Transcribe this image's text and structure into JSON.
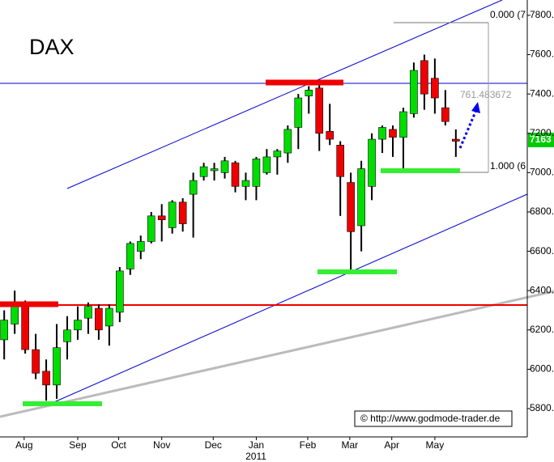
{
  "chart_data": {
    "type": "candlestick",
    "title": "DAX",
    "x": [
      0,
      1,
      2,
      3,
      4,
      5,
      6,
      7,
      8,
      9,
      10,
      11,
      12,
      13,
      14,
      15,
      16,
      17,
      18,
      19,
      20,
      21,
      22,
      23,
      24,
      25,
      26,
      27,
      28,
      29,
      30,
      31,
      32,
      33,
      34,
      35,
      36,
      37,
      38,
      39,
      40,
      41,
      42,
      43
    ],
    "open": [
      6150,
      6230,
      6330,
      6100,
      5990,
      5920,
      6140,
      6200,
      6260,
      6310,
      6220,
      6290,
      6510,
      6600,
      6650,
      6780,
      6720,
      6850,
      6890,
      6980,
      7010,
      7000,
      7050,
      6930,
      6930,
      7000,
      7080,
      7100,
      7230,
      7390,
      7430,
      7210,
      7140,
      6950,
      6730,
      6930,
      7170,
      7220,
      7180,
      7300,
      7570,
      7480,
      7330,
      7170
    ],
    "high": [
      6300,
      6400,
      6350,
      6180,
      6050,
      6230,
      6270,
      6320,
      6340,
      6330,
      6330,
      6520,
      6650,
      6680,
      6800,
      6840,
      6860,
      6870,
      7000,
      7050,
      7050,
      7080,
      7060,
      7000,
      7080,
      7120,
      7120,
      7240,
      7400,
      7440,
      7450,
      7350,
      7160,
      7000,
      7060,
      7200,
      7240,
      7240,
      7330,
      7560,
      7600,
      7580,
      7420,
      7220
    ],
    "low": [
      6050,
      6180,
      6080,
      5950,
      5840,
      5850,
      6050,
      6150,
      6180,
      6150,
      6120,
      6240,
      6480,
      6560,
      6640,
      6650,
      6690,
      6700,
      6670,
      6960,
      6960,
      6970,
      6900,
      6860,
      6860,
      6990,
      6990,
      7050,
      7120,
      7300,
      7110,
      7140,
      6780,
      6500,
      6600,
      6860,
      7100,
      7080,
      7000,
      7280,
      7320,
      7300,
      7240,
      7080
    ],
    "close": [
      6250,
      6320,
      6100,
      5980,
      5920,
      6110,
      6200,
      6250,
      6320,
      6200,
      6310,
      6500,
      6640,
      6650,
      6780,
      6760,
      6850,
      6740,
      6960,
      7030,
      7020,
      7060,
      6930,
      6960,
      7070,
      7080,
      7110,
      7220,
      7380,
      7420,
      7200,
      7170,
      6980,
      6700,
      7020,
      7170,
      7230,
      7180,
      7310,
      7520,
      7400,
      7380,
      7260,
      7160
    ],
    "up_color": "#00dd00",
    "down_color": "#ee0000",
    "xlim": [
      -0.4,
      49.8
    ],
    "ylim": [
      5656,
      7878
    ],
    "xticks": [
      {
        "value": 1.9,
        "label": "Aug"
      },
      {
        "value": 7,
        "label": "Sep"
      },
      {
        "value": 10.9,
        "label": "Oct"
      },
      {
        "value": 15,
        "label": "Nov"
      },
      {
        "value": 19.9,
        "label": "Dec"
      },
      {
        "value": 24,
        "label": "Jan"
      },
      {
        "value": 28.9,
        "label": "Feb"
      },
      {
        "value": 32.9,
        "label": "Mar"
      },
      {
        "value": 36.9,
        "label": "Apr"
      },
      {
        "value": 41,
        "label": "May"
      }
    ],
    "year_label": "2011",
    "yticks": [
      {
        "value": 5800,
        "label": "5800."
      },
      {
        "value": 6000,
        "label": "6000."
      },
      {
        "value": 6200,
        "label": "6200."
      },
      {
        "value": 6400,
        "label": "6400."
      },
      {
        "value": 6600,
        "label": "6600."
      },
      {
        "value": 6800,
        "label": "6800."
      },
      {
        "value": 7000,
        "label": "7000."
      },
      {
        "value": 7200,
        "label": "7200."
      },
      {
        "value": 7400,
        "label": "7400."
      },
      {
        "value": 7600,
        "label": "7600."
      },
      {
        "value": 7800,
        "label": "7800."
      }
    ],
    "last_price_label": "7163",
    "annotations": [
      "0.000 (7",
      "1.000 (6",
      "761.483672"
    ],
    "watermark": "© http://www.godmode-trader.de"
  }
}
